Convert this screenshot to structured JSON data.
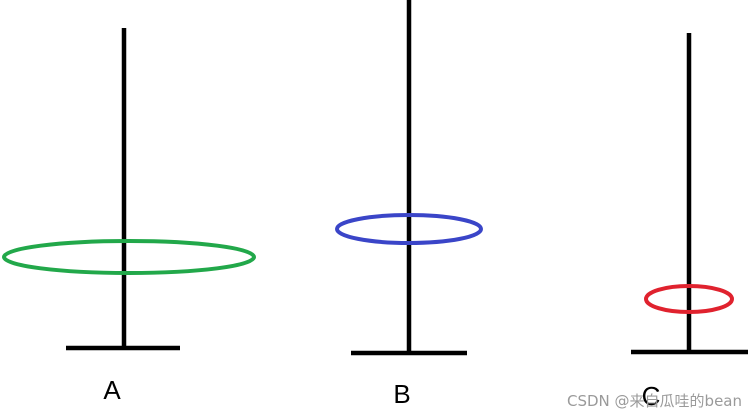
{
  "pegs": [
    {
      "label": "A",
      "ring_color": "#22a84a"
    },
    {
      "label": "B",
      "ring_color": "#3a45c8"
    },
    {
      "label": "C",
      "ring_color": "#e0222e"
    }
  ],
  "pole_color": "#000000",
  "watermark": "CSDN @来自瓜哇的bean"
}
